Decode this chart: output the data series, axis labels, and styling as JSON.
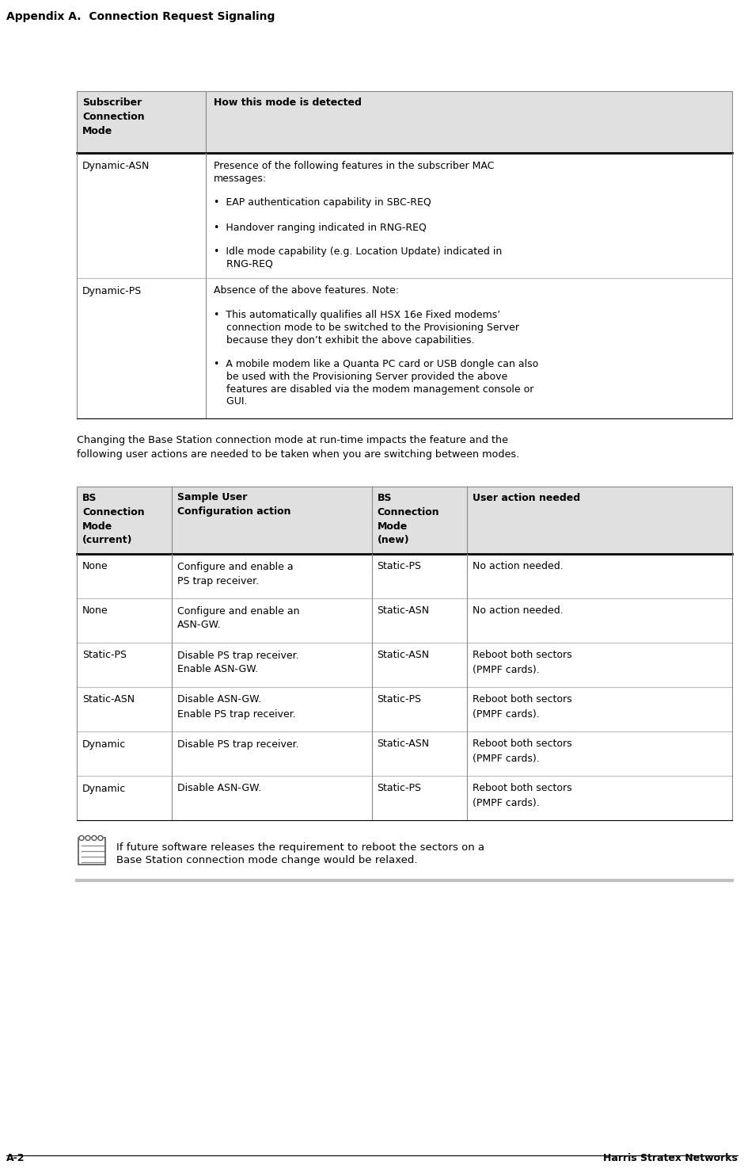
{
  "page_title": "Appendix A.  Connection Request Signaling",
  "footer_left": "A-2",
  "footer_right": "Harris Stratex Networks",
  "bg_color": "#ffffff",
  "header_bg": "#e0e0e0",
  "table1_header_col1": "Subscriber\nConnection\nMode",
  "table1_header_col2": "How this mode is detected",
  "table1_rows": [
    {
      "col1": "Dynamic-ASN",
      "col2_lines": [
        "Presence of the following features in the subscriber MAC",
        "messages:",
        "",
        "•  EAP authentication capability in SBC-REQ",
        "",
        "•  Handover ranging indicated in RNG-REQ",
        "",
        "•  Idle mode capability (e.g. Location Update) indicated in",
        "    RNG-REQ"
      ]
    },
    {
      "col1": "Dynamic-PS",
      "col2_lines": [
        "Absence of the above features. Note:",
        "",
        "•  This automatically qualifies all HSX 16e Fixed modems’",
        "    connection mode to be switched to the Provisioning Server",
        "    because they don’t exhibit the above capabilities.",
        "",
        "•  A mobile modem like a Quanta PC card or USB dongle can also",
        "    be used with the Provisioning Server provided the above",
        "    features are disabled via the modem management console or",
        "    GUI."
      ]
    }
  ],
  "mid_text_lines": [
    "Changing the Base Station connection mode at run-time impacts the feature and the",
    "following user actions are needed to be taken when you are switching between modes."
  ],
  "table2_headers": [
    "BS\nConnection\nMode\n(current)",
    "Sample User\nConfiguration action",
    "BS\nConnection\nMode\n(new)",
    "User action needed"
  ],
  "table2_rows": [
    [
      "None",
      "Configure and enable a\nPS trap receiver.",
      "Static-PS",
      "No action needed."
    ],
    [
      "None",
      "Configure and enable an\nASN-GW.",
      "Static-ASN",
      "No action needed."
    ],
    [
      "Static-PS",
      "Disable PS trap receiver.\nEnable ASN-GW.",
      "Static-ASN",
      "Reboot both sectors\n(PMPF cards)."
    ],
    [
      "Static-ASN",
      "Disable ASN-GW.\nEnable PS trap receiver.",
      "Static-PS",
      "Reboot both sectors\n(PMPF cards)."
    ],
    [
      "Dynamic",
      "Disable PS trap receiver.",
      "Static-ASN",
      "Reboot both sectors\n(PMPF cards)."
    ],
    [
      "Dynamic",
      "Disable ASN-GW.",
      "Static-PS",
      "Reboot both sectors\n(PMPF cards)."
    ]
  ],
  "note_text_lines": [
    "If future software releases the requirement to reboot the sectors on a",
    "Base Station connection mode change would be relaxed."
  ]
}
